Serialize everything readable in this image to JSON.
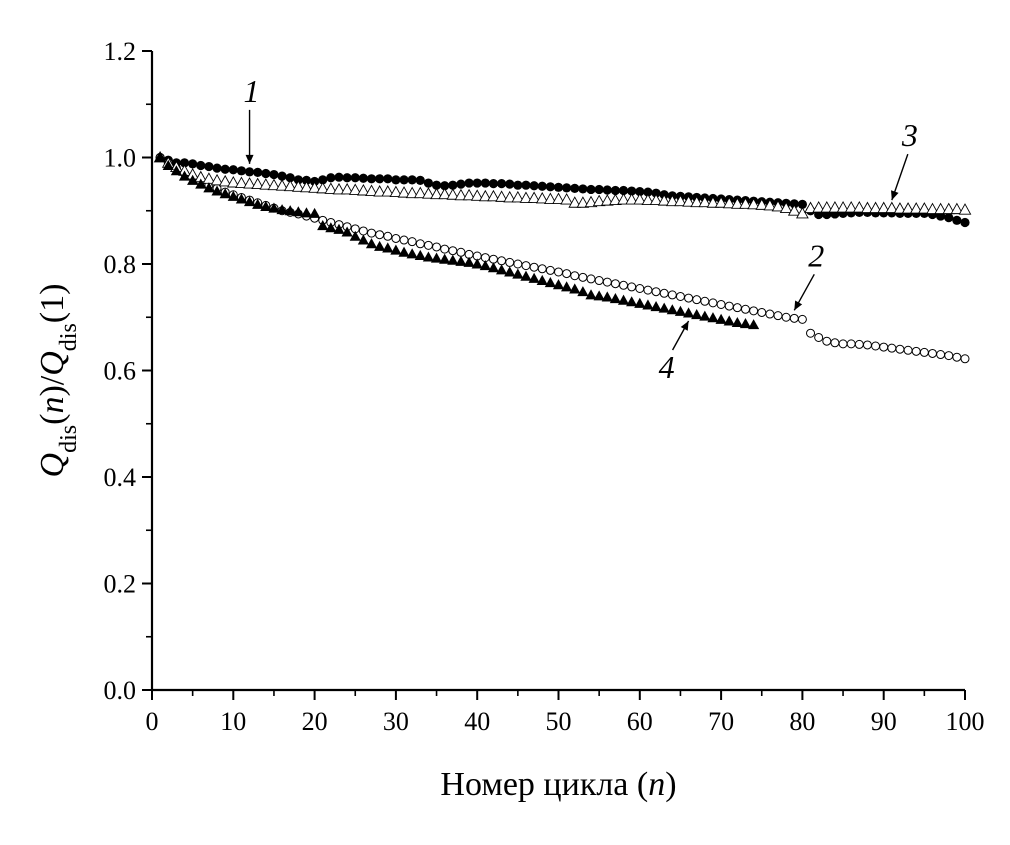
{
  "chart_data": {
    "type": "scatter",
    "xlabel": "Номер цикла (n)",
    "xlabel_parts": [
      "Номер цикла (",
      "n",
      ")"
    ],
    "ylabel_parts": [
      "Q",
      "dis",
      "(",
      "n",
      ")/",
      "Q",
      "dis",
      "(1)"
    ],
    "xlim": [
      0,
      100
    ],
    "ylim": [
      0.0,
      1.2
    ],
    "xticks": [
      0,
      10,
      20,
      30,
      40,
      50,
      60,
      70,
      80,
      90,
      100
    ],
    "yticks": [
      "0.0",
      "0.2",
      "0.4",
      "0.6",
      "0.8",
      "1.0",
      "1.2"
    ],
    "grid": false,
    "legend": "none",
    "series": [
      {
        "label": "1",
        "marker": "filled-circle",
        "x": [
          1,
          2,
          3,
          4,
          5,
          6,
          7,
          8,
          9,
          10,
          11,
          12,
          13,
          14,
          15,
          16,
          17,
          18,
          19,
          20,
          21,
          22,
          23,
          24,
          25,
          26,
          27,
          28,
          29,
          30,
          31,
          32,
          33,
          34,
          35,
          36,
          37,
          38,
          39,
          40,
          41,
          42,
          43,
          44,
          45,
          46,
          47,
          48,
          49,
          50,
          51,
          52,
          53,
          54,
          55,
          56,
          57,
          58,
          59,
          60,
          61,
          62,
          63,
          64,
          65,
          66,
          67,
          68,
          69,
          70,
          71,
          72,
          73,
          74,
          75,
          76,
          77,
          78,
          79,
          80,
          81,
          82,
          83,
          84,
          85,
          86,
          87,
          88,
          89,
          90,
          91,
          92,
          93,
          94,
          95,
          96,
          97,
          98,
          99,
          100
        ],
        "y": [
          1.0,
          0.995,
          0.99,
          0.99,
          0.988,
          0.985,
          0.983,
          0.98,
          0.978,
          0.977,
          0.975,
          0.973,
          0.972,
          0.97,
          0.968,
          0.965,
          0.962,
          0.958,
          0.957,
          0.955,
          0.958,
          0.962,
          0.963,
          0.962,
          0.962,
          0.961,
          0.96,
          0.96,
          0.96,
          0.958,
          0.958,
          0.958,
          0.957,
          0.952,
          0.948,
          0.947,
          0.948,
          0.95,
          0.952,
          0.952,
          0.952,
          0.951,
          0.951,
          0.95,
          0.948,
          0.948,
          0.947,
          0.946,
          0.945,
          0.944,
          0.943,
          0.942,
          0.941,
          0.94,
          0.94,
          0.939,
          0.938,
          0.938,
          0.937,
          0.936,
          0.935,
          0.933,
          0.93,
          0.928,
          0.927,
          0.926,
          0.925,
          0.924,
          0.923,
          0.922,
          0.921,
          0.92,
          0.919,
          0.918,
          0.917,
          0.916,
          0.915,
          0.914,
          0.913,
          0.912,
          0.9,
          0.893,
          0.893,
          0.894,
          0.895,
          0.896,
          0.897,
          0.897,
          0.896,
          0.896,
          0.896,
          0.895,
          0.895,
          0.895,
          0.895,
          0.893,
          0.89,
          0.887,
          0.882,
          0.878
        ]
      },
      {
        "label": "2",
        "marker": "open-circle",
        "x": [
          1,
          2,
          3,
          4,
          5,
          6,
          7,
          8,
          9,
          10,
          11,
          12,
          13,
          14,
          15,
          16,
          17,
          18,
          19,
          20,
          21,
          22,
          23,
          24,
          25,
          26,
          27,
          28,
          29,
          30,
          31,
          32,
          33,
          34,
          35,
          36,
          37,
          38,
          39,
          40,
          41,
          42,
          43,
          44,
          45,
          46,
          47,
          48,
          49,
          50,
          51,
          52,
          53,
          54,
          55,
          56,
          57,
          58,
          59,
          60,
          61,
          62,
          63,
          64,
          65,
          66,
          67,
          68,
          69,
          70,
          71,
          72,
          73,
          74,
          75,
          76,
          77,
          78,
          79,
          80,
          81,
          82,
          83,
          84,
          85,
          86,
          87,
          88,
          89,
          90,
          91,
          92,
          93,
          94,
          95,
          96,
          97,
          98,
          99,
          100
        ],
        "y": [
          1.0,
          0.99,
          0.98,
          0.97,
          0.962,
          0.955,
          0.948,
          0.942,
          0.935,
          0.93,
          0.925,
          0.92,
          0.915,
          0.91,
          0.905,
          0.9,
          0.897,
          0.894,
          0.89,
          0.886,
          0.882,
          0.878,
          0.874,
          0.87,
          0.866,
          0.862,
          0.858,
          0.855,
          0.852,
          0.848,
          0.845,
          0.842,
          0.838,
          0.835,
          0.832,
          0.828,
          0.825,
          0.822,
          0.818,
          0.815,
          0.812,
          0.809,
          0.806,
          0.803,
          0.8,
          0.797,
          0.794,
          0.791,
          0.788,
          0.785,
          0.782,
          0.778,
          0.775,
          0.772,
          0.769,
          0.766,
          0.763,
          0.76,
          0.757,
          0.754,
          0.751,
          0.748,
          0.745,
          0.742,
          0.739,
          0.736,
          0.733,
          0.73,
          0.727,
          0.724,
          0.721,
          0.718,
          0.715,
          0.712,
          0.709,
          0.706,
          0.703,
          0.7,
          0.698,
          0.696,
          0.67,
          0.662,
          0.655,
          0.652,
          0.65,
          0.65,
          0.649,
          0.648,
          0.646,
          0.644,
          0.642,
          0.64,
          0.638,
          0.636,
          0.634,
          0.632,
          0.63,
          0.628,
          0.625,
          0.622
        ]
      },
      {
        "label": "3",
        "marker": "open-triangle",
        "x": [
          1,
          2,
          3,
          4,
          5,
          6,
          7,
          8,
          9,
          10,
          11,
          12,
          13,
          14,
          15,
          16,
          17,
          18,
          19,
          20,
          21,
          22,
          23,
          24,
          25,
          26,
          27,
          28,
          29,
          30,
          31,
          32,
          33,
          34,
          35,
          36,
          37,
          38,
          39,
          40,
          41,
          42,
          43,
          44,
          45,
          46,
          47,
          48,
          49,
          50,
          51,
          52,
          53,
          54,
          55,
          56,
          57,
          58,
          59,
          60,
          61,
          62,
          63,
          64,
          65,
          66,
          67,
          68,
          69,
          70,
          71,
          72,
          73,
          74,
          75,
          76,
          77,
          78,
          79,
          80,
          81,
          82,
          83,
          84,
          85,
          86,
          87,
          88,
          89,
          90,
          91,
          92,
          93,
          94,
          95,
          96,
          97,
          98,
          99,
          100
        ],
        "y": [
          1.0,
          0.99,
          0.982,
          0.975,
          0.968,
          0.963,
          0.96,
          0.957,
          0.955,
          0.953,
          0.952,
          0.951,
          0.95,
          0.949,
          0.948,
          0.947,
          0.946,
          0.945,
          0.944,
          0.943,
          0.942,
          0.941,
          0.94,
          0.94,
          0.939,
          0.938,
          0.937,
          0.936,
          0.936,
          0.935,
          0.934,
          0.933,
          0.933,
          0.932,
          0.931,
          0.931,
          0.93,
          0.929,
          0.929,
          0.928,
          0.927,
          0.927,
          0.926,
          0.925,
          0.925,
          0.924,
          0.924,
          0.923,
          0.922,
          0.922,
          0.921,
          0.915,
          0.915,
          0.916,
          0.918,
          0.919,
          0.92,
          0.921,
          0.921,
          0.921,
          0.92,
          0.92,
          0.919,
          0.918,
          0.918,
          0.917,
          0.916,
          0.916,
          0.915,
          0.915,
          0.914,
          0.913,
          0.913,
          0.912,
          0.911,
          0.91,
          0.908,
          0.905,
          0.9,
          0.895,
          0.905,
          0.906,
          0.906,
          0.906,
          0.906,
          0.906,
          0.906,
          0.905,
          0.905,
          0.905,
          0.905,
          0.904,
          0.904,
          0.904,
          0.904,
          0.903,
          0.903,
          0.903,
          0.903,
          0.902
        ]
      },
      {
        "label": "4",
        "marker": "filled-triangle",
        "x": [
          1,
          2,
          3,
          4,
          5,
          6,
          7,
          8,
          9,
          10,
          11,
          12,
          13,
          14,
          15,
          16,
          17,
          18,
          19,
          20,
          21,
          22,
          23,
          24,
          25,
          26,
          27,
          28,
          29,
          30,
          31,
          32,
          33,
          34,
          35,
          36,
          37,
          38,
          39,
          40,
          41,
          42,
          43,
          44,
          45,
          46,
          47,
          48,
          49,
          50,
          51,
          52,
          53,
          54,
          55,
          56,
          57,
          58,
          59,
          60,
          61,
          62,
          63,
          64,
          65,
          66,
          67,
          68,
          69,
          70,
          71,
          72,
          73,
          74
        ],
        "y": [
          1.0,
          0.985,
          0.975,
          0.965,
          0.957,
          0.95,
          0.943,
          0.937,
          0.932,
          0.927,
          0.922,
          0.917,
          0.912,
          0.908,
          0.905,
          0.902,
          0.9,
          0.898,
          0.896,
          0.895,
          0.872,
          0.868,
          0.865,
          0.86,
          0.852,
          0.845,
          0.838,
          0.833,
          0.83,
          0.826,
          0.822,
          0.819,
          0.816,
          0.813,
          0.811,
          0.809,
          0.807,
          0.805,
          0.803,
          0.8,
          0.797,
          0.793,
          0.789,
          0.785,
          0.781,
          0.777,
          0.773,
          0.769,
          0.765,
          0.761,
          0.757,
          0.753,
          0.748,
          0.742,
          0.74,
          0.738,
          0.735,
          0.732,
          0.729,
          0.726,
          0.723,
          0.72,
          0.717,
          0.714,
          0.711,
          0.708,
          0.705,
          0.702,
          0.699,
          0.696,
          0.693,
          0.69,
          0.688,
          0.686
        ]
      }
    ],
    "annotations": [
      {
        "text": "1",
        "series": 0,
        "at_x": 12
      },
      {
        "text": "2",
        "series": 1,
        "at_x": 79
      },
      {
        "text": "3",
        "series": 2,
        "at_x": 91
      },
      {
        "text": "4",
        "series": 3,
        "at_x": 66
      }
    ]
  }
}
